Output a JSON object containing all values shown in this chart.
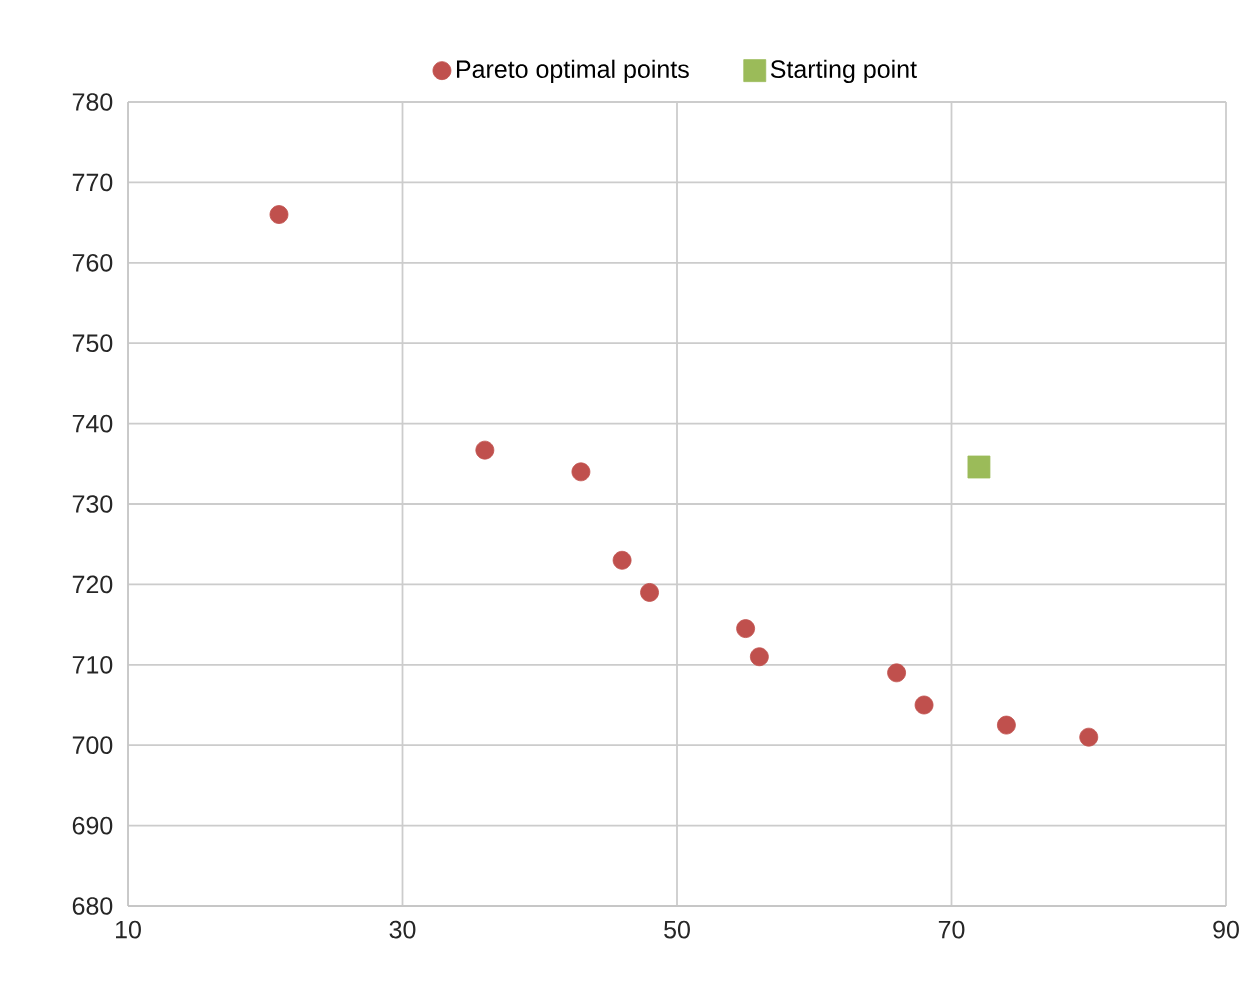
{
  "chart_data": {
    "type": "scatter",
    "xlim": [
      10,
      90
    ],
    "xticks": [
      10,
      30,
      50,
      70,
      90
    ],
    "ylim": [
      680,
      780
    ],
    "yticks": [
      680,
      690,
      700,
      710,
      720,
      730,
      740,
      750,
      760,
      770,
      780
    ],
    "grid": true,
    "legend": "top",
    "series": [
      {
        "name": "Pareto optimal points",
        "color": "#c0504d",
        "marker": "circle",
        "x": [
          21,
          36,
          43,
          46,
          48,
          55,
          56,
          66,
          68,
          74,
          80
        ],
        "values": [
          766,
          736.7,
          734,
          723,
          719,
          714.5,
          711,
          709,
          705,
          702.5,
          701
        ]
      },
      {
        "name": "Starting point",
        "color": "#9bbb59",
        "marker": "square",
        "x": [
          72
        ],
        "values": [
          734.6
        ]
      }
    ]
  }
}
